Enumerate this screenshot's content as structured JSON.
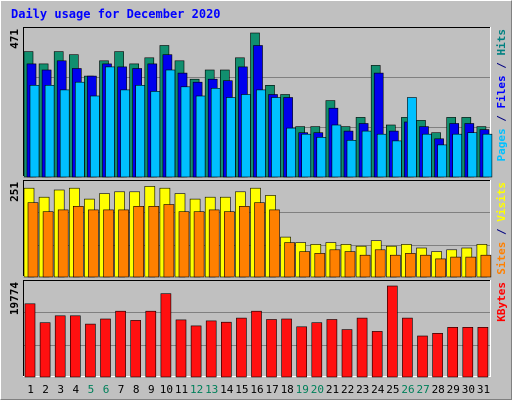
{
  "chart_data": {
    "type": "bar",
    "title": "Daily usage for December 2020",
    "categories": [
      "1",
      "2",
      "3",
      "4",
      "5",
      "6",
      "7",
      "8",
      "9",
      "10",
      "11",
      "12",
      "13",
      "14",
      "15",
      "16",
      "17",
      "18",
      "19",
      "20",
      "21",
      "22",
      "23",
      "24",
      "25",
      "26",
      "27",
      "28",
      "29",
      "30",
      "31"
    ],
    "weekend_categories": [
      "5",
      "6",
      "12",
      "13",
      "19",
      "20",
      "26",
      "27"
    ],
    "panels": [
      {
        "name": "hits-files-pages",
        "ymax": 471,
        "ymax_label": "471",
        "axis_label_parts": [
          {
            "text": "Pages",
            "color": "#00c0ff"
          },
          {
            "text": " / ",
            "color": "#000080"
          },
          {
            "text": "Files",
            "color": "#0000ff"
          },
          {
            "text": " / ",
            "color": "#000080"
          },
          {
            "text": "Hits",
            "color": "#008080"
          }
        ],
        "series": [
          {
            "name": "Hits",
            "color": "#118f6f",
            "values": [
              410,
              370,
              410,
              400,
              330,
              380,
              410,
              370,
              390,
              430,
              380,
              320,
              350,
              350,
              390,
              471,
              300,
              270,
              165,
              165,
              250,
              165,
              195,
              365,
              170,
              195,
              185,
              145,
              195,
              195,
              165
            ]
          },
          {
            "name": "Files",
            "color": "#0000ee",
            "values": [
              370,
              350,
              380,
              355,
              330,
              370,
              360,
              355,
              370,
              400,
              340,
              310,
              320,
              315,
              360,
              430,
              270,
              260,
              145,
              145,
              225,
              150,
              175,
              340,
              150,
              180,
              165,
              125,
              175,
              175,
              155
            ]
          },
          {
            "name": "Pages",
            "color": "#00c0ff",
            "values": [
              300,
              300,
              285,
              310,
              265,
              360,
              285,
              300,
              280,
              350,
              295,
              265,
              290,
              260,
              270,
              285,
              260,
              160,
              140,
              130,
              170,
              120,
              150,
              140,
              118,
              260,
              140,
              105,
              140,
              145,
              140
            ]
          }
        ]
      },
      {
        "name": "visits-sites",
        "ymax": 251,
        "ymax_label": "251",
        "axis_label_parts": [
          {
            "text": "Sites",
            "color": "#ff8000"
          },
          {
            "text": " / ",
            "color": "#000080"
          },
          {
            "text": "Visits",
            "color": "#ffff00"
          }
        ],
        "series": [
          {
            "name": "Visits",
            "color": "#ffff00",
            "values": [
              245,
              220,
              240,
              245,
              215,
              230,
              235,
              235,
              250,
              245,
              230,
              215,
              220,
              220,
              235,
              245,
              225,
              110,
              95,
              90,
              95,
              90,
              85,
              100,
              85,
              90,
              80,
              70,
              75,
              80,
              90
            ]
          },
          {
            "name": "Sites",
            "color": "#ff8000",
            "values": [
              205,
              180,
              185,
              195,
              185,
              185,
              185,
              195,
              195,
              200,
              180,
              180,
              185,
              180,
              195,
              205,
              185,
              95,
              70,
              65,
              75,
              70,
              60,
              75,
              60,
              65,
              60,
              50,
              55,
              55,
              60
            ]
          }
        ]
      },
      {
        "name": "kbytes",
        "ymax": 19774,
        "ymax_label": "19774",
        "axis_label_parts": [
          {
            "text": "KBytes",
            "color": "#ff0000"
          }
        ],
        "series": [
          {
            "name": "KBytes",
            "color": "#ff1010",
            "values": [
              15900,
              11800,
              13300,
              13300,
              11500,
              12600,
              14300,
              12300,
              14300,
              18100,
              12400,
              11100,
              12200,
              11900,
              12800,
              14300,
              12500,
              12600,
              10900,
              11800,
              12500,
              10300,
              12800,
              9900,
              19774,
              12800,
              8900,
              9500,
              10800,
              10800,
              10800
            ]
          }
        ]
      }
    ]
  }
}
